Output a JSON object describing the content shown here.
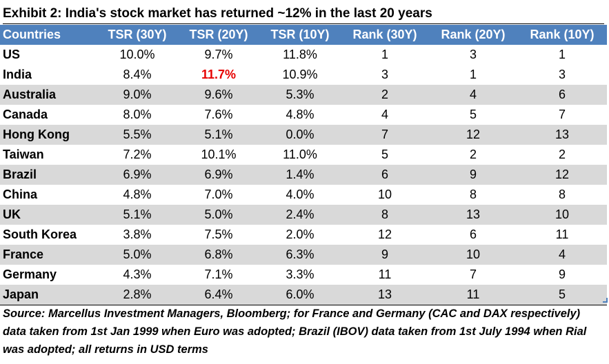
{
  "title": "Exhibit 2: India's stock market has returned ~12% in the last 20 years",
  "table": {
    "columns": [
      "Countries",
      "TSR (30Y)",
      "TSR (20Y)",
      "TSR (10Y)",
      "Rank (30Y)",
      "Rank (20Y)",
      "Rank (10Y)"
    ],
    "rows": [
      [
        "US",
        "10.0%",
        "9.7%",
        "11.8%",
        "1",
        "3",
        "1"
      ],
      [
        "India",
        "8.4%",
        "11.7%",
        "10.9%",
        "3",
        "1",
        "3"
      ],
      [
        "Australia",
        "9.0%",
        "9.6%",
        "5.3%",
        "2",
        "4",
        "6"
      ],
      [
        "Canada",
        "8.0%",
        "7.6%",
        "4.8%",
        "4",
        "5",
        "7"
      ],
      [
        "Hong Kong",
        "5.5%",
        "5.1%",
        "0.0%",
        "7",
        "12",
        "13"
      ],
      [
        "Taiwan",
        "7.2%",
        "10.1%",
        "11.0%",
        "5",
        "2",
        "2"
      ],
      [
        "Brazil",
        "6.9%",
        "6.9%",
        "1.4%",
        "6",
        "9",
        "12"
      ],
      [
        "China",
        "4.8%",
        "7.0%",
        "4.0%",
        "10",
        "8",
        "8"
      ],
      [
        "UK",
        "5.1%",
        "5.0%",
        "2.4%",
        "8",
        "13",
        "10"
      ],
      [
        "South Korea",
        "3.8%",
        "7.5%",
        "2.0%",
        "12",
        "6",
        "11"
      ],
      [
        "France",
        "5.0%",
        "6.8%",
        "6.3%",
        "9",
        "10",
        "4"
      ],
      [
        "Germany",
        "4.3%",
        "7.1%",
        "3.3%",
        "11",
        "7",
        "9"
      ],
      [
        "Japan",
        "2.8%",
        "6.4%",
        "6.0%",
        "13",
        "11",
        "5"
      ]
    ],
    "highlight_color": "#e60000",
    "header_color": "#4f81bd",
    "stripe_color": "#d9d9d9"
  },
  "source": "Source: Marcellus Investment Managers, Bloomberg; for France and Germany (CAC and DAX respectively) data taken from 1st Jan 1999 when Euro was adopted; Brazil (IBOV) data taken from 1st July 1994 when Rial was adopted; all returns in USD terms"
}
